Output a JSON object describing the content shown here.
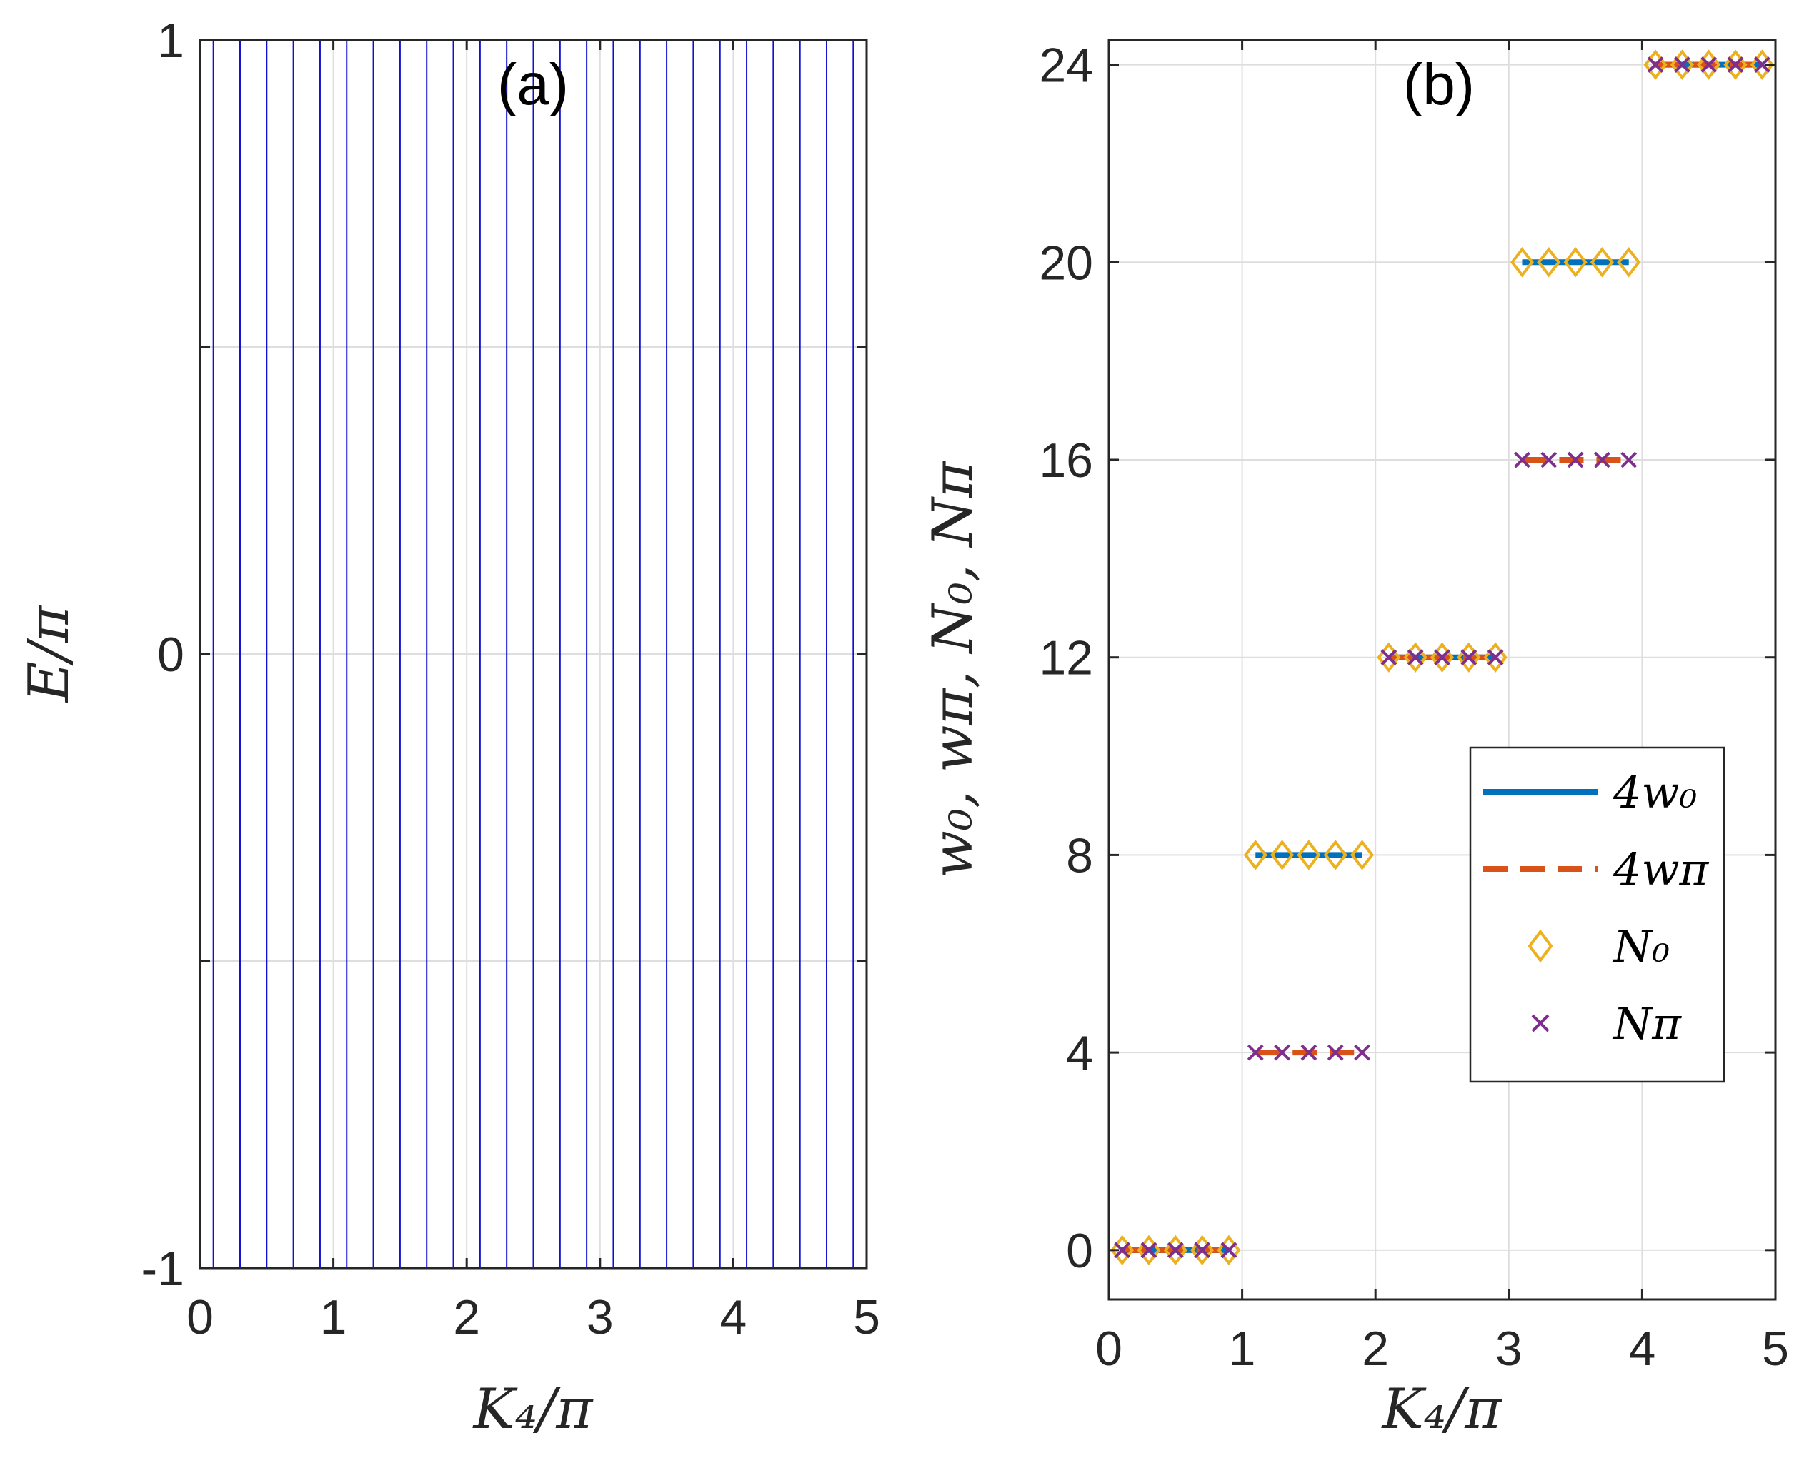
{
  "chart_data": [
    {
      "type": "line",
      "panel_label": "(a)",
      "xlabel": "K₄/π",
      "ylabel": "E/π",
      "xlim": [
        0,
        5
      ],
      "ylim": [
        -1,
        1
      ],
      "xticks": [
        "0",
        "1",
        "2",
        "3",
        "4",
        "5"
      ],
      "yticks": [
        "-1",
        "0",
        "1"
      ],
      "grid": true,
      "series_color": "#1010d0",
      "vertical_lines_x": [
        0.1,
        0.3,
        0.5,
        0.7,
        0.9,
        1.1,
        1.3,
        1.5,
        1.7,
        1.9,
        2.1,
        2.3,
        2.5,
        2.7,
        2.9,
        3.1,
        3.3,
        3.5,
        3.7,
        3.9,
        4.1,
        4.3,
        4.5,
        4.7,
        4.9
      ],
      "note": "Quasienergy spectrum appears as vertical lines spanning E/pi from -1 to 1 at sampled K4/pi values"
    },
    {
      "type": "scatter",
      "panel_label": "(b)",
      "xlabel": "K₄/π",
      "ylabel": "w₀, wπ, N₀, Nπ",
      "xlim": [
        0,
        5
      ],
      "ylim": [
        -1,
        24.5
      ],
      "xticks": [
        "0",
        "1",
        "2",
        "3",
        "4",
        "5"
      ],
      "yticks": [
        "0",
        "4",
        "8",
        "12",
        "16",
        "20",
        "24"
      ],
      "grid": true,
      "legend_position": "center-right",
      "x": [
        0.1,
        0.3,
        0.5,
        0.7,
        0.9,
        1.1,
        1.3,
        1.5,
        1.7,
        1.9,
        2.1,
        2.3,
        2.5,
        2.7,
        2.9,
        3.1,
        3.3,
        3.5,
        3.7,
        3.9,
        4.1,
        4.3,
        4.5,
        4.7,
        4.9
      ],
      "series": [
        {
          "name": "4w₀",
          "style": "solid",
          "color": "#0072bd",
          "values": [
            0,
            0,
            0,
            0,
            0,
            8,
            8,
            8,
            8,
            8,
            12,
            12,
            12,
            12,
            12,
            20,
            20,
            20,
            20,
            20,
            24,
            24,
            24,
            24,
            24
          ]
        },
        {
          "name": "4wπ",
          "style": "dashed",
          "color": "#d95319",
          "values": [
            0,
            0,
            0,
            0,
            0,
            4,
            4,
            4,
            4,
            4,
            12,
            12,
            12,
            12,
            12,
            16,
            16,
            16,
            16,
            16,
            24,
            24,
            24,
            24,
            24
          ]
        },
        {
          "name": "N₀",
          "style": "diamond",
          "color": "#edb120",
          "values": [
            0,
            0,
            0,
            0,
            0,
            8,
            8,
            8,
            8,
            8,
            12,
            12,
            12,
            12,
            12,
            20,
            20,
            20,
            20,
            20,
            24,
            24,
            24,
            24,
            24
          ]
        },
        {
          "name": "Nπ",
          "style": "cross",
          "color": "#7e2f8e",
          "values": [
            0,
            0,
            0,
            0,
            0,
            4,
            4,
            4,
            4,
            4,
            12,
            12,
            12,
            12,
            12,
            16,
            16,
            16,
            16,
            16,
            24,
            24,
            24,
            24,
            24
          ]
        }
      ]
    }
  ]
}
